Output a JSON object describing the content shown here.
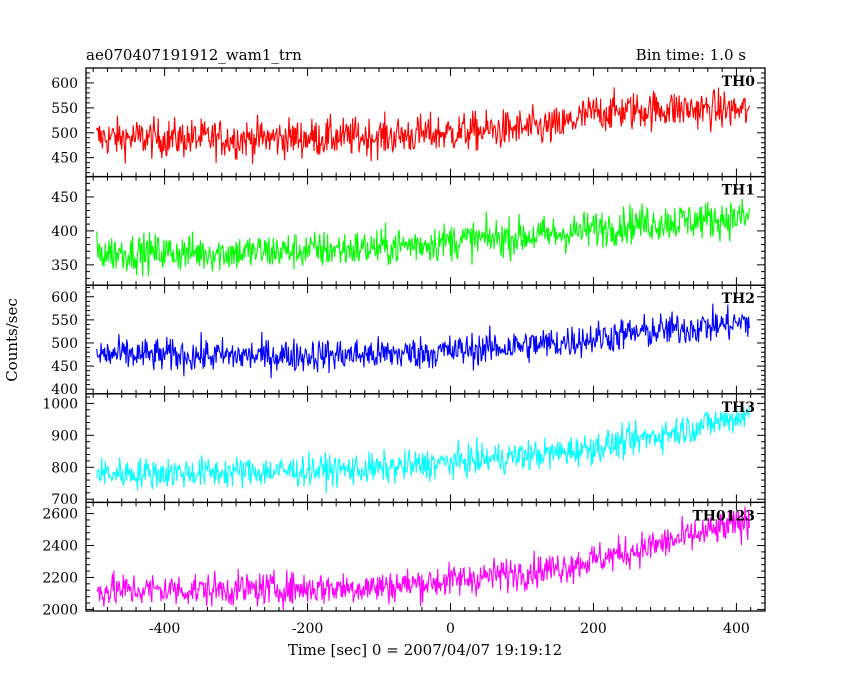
{
  "chart_data": {
    "type": "line",
    "title_left": "ae070407191912_wam1_trn",
    "title_right": "Bin time: 1.0 s",
    "xlabel": "Time [sec] 0 = 2007/04/07 19:19:12",
    "ylabel": "Counts/sec",
    "xlim": [
      -510,
      440
    ],
    "xticks": [
      -400,
      -200,
      0,
      200,
      400
    ],
    "x_range": [
      -495,
      418
    ],
    "panels": [
      {
        "name": "TH0",
        "color": "#ff0000",
        "ylim": [
          412,
          630
        ],
        "yticks": [
          450,
          500,
          550,
          600
        ],
        "trend": [
          [
            -495,
            490
          ],
          [
            -300,
            488
          ],
          [
            -100,
            492
          ],
          [
            0,
            500
          ],
          [
            150,
            512
          ],
          [
            200,
            540
          ],
          [
            300,
            548
          ],
          [
            418,
            545
          ]
        ],
        "noise": 28
      },
      {
        "name": "TH1",
        "color": "#00ff00",
        "ylim": [
          320,
          480
        ],
        "yticks": [
          350,
          400,
          450
        ],
        "trend": [
          [
            -495,
            368
          ],
          [
            -300,
            368
          ],
          [
            -100,
            375
          ],
          [
            0,
            385
          ],
          [
            150,
            395
          ],
          [
            250,
            410
          ],
          [
            418,
            420
          ]
        ],
        "noise": 20
      },
      {
        "name": "TH2",
        "color": "#0000ff",
        "ylim": [
          390,
          625
        ],
        "yticks": [
          400,
          450,
          500,
          550,
          600
        ],
        "trend": [
          [
            -495,
            475
          ],
          [
            -300,
            472
          ],
          [
            -100,
            475
          ],
          [
            0,
            482
          ],
          [
            150,
            500
          ],
          [
            250,
            520
          ],
          [
            418,
            545
          ]
        ],
        "noise": 26
      },
      {
        "name": "TH3",
        "color": "#00ffff",
        "ylim": [
          690,
          1030
        ],
        "yticks": [
          700,
          800,
          900,
          1000
        ],
        "trend": [
          [
            -495,
            780
          ],
          [
            -300,
            785
          ],
          [
            -100,
            795
          ],
          [
            0,
            815
          ],
          [
            150,
            845
          ],
          [
            250,
            880
          ],
          [
            418,
            965
          ]
        ],
        "noise": 35
      },
      {
        "name": "TH0123",
        "color": "#ff00ff",
        "ylim": [
          1990,
          2670
        ],
        "yticks": [
          2000,
          2200,
          2400,
          2600
        ],
        "trend": [
          [
            -495,
            2120
          ],
          [
            -300,
            2125
          ],
          [
            -100,
            2140
          ],
          [
            0,
            2180
          ],
          [
            150,
            2260
          ],
          [
            250,
            2360
          ],
          [
            418,
            2550
          ]
        ],
        "noise": 75
      }
    ]
  }
}
